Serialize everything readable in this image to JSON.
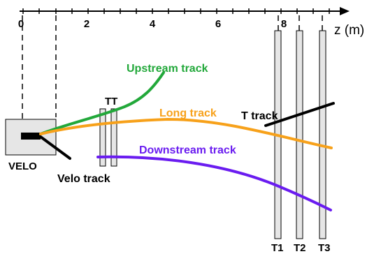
{
  "axis": {
    "unit_label": "z (m)",
    "tick_labels": [
      "0",
      "2",
      "4",
      "6",
      "8"
    ]
  },
  "detectors": {
    "velo_label": "VELO",
    "tt_label": "TT",
    "t1_label": "T1",
    "t2_label": "T2",
    "t3_label": "T3"
  },
  "tracks": {
    "upstream": {
      "label": "Upstream track",
      "color": "#22a83a"
    },
    "long": {
      "label": "Long track",
      "color": "#f7a11a"
    },
    "downstream": {
      "label": "Downstream track",
      "color": "#6a1cf0"
    },
    "t_track": {
      "label": "T track",
      "color": "#000000"
    },
    "velo_track": {
      "label": "Velo track",
      "color": "#000000"
    }
  }
}
